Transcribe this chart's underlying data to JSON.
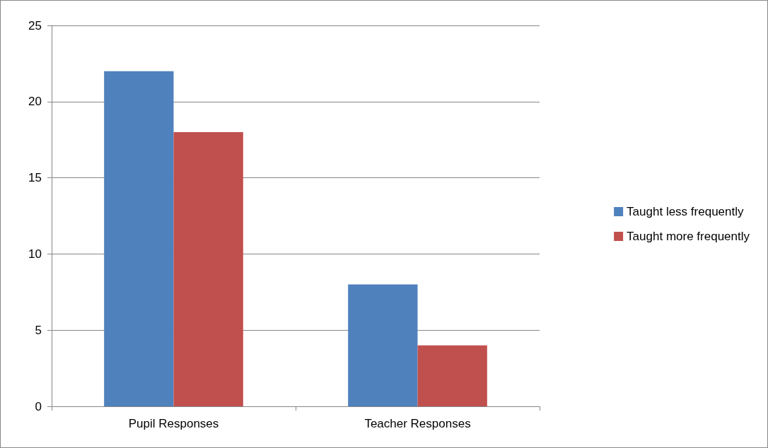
{
  "chart_data": {
    "type": "bar",
    "categories": [
      "Pupil Responses",
      "Teacher Responses"
    ],
    "series": [
      {
        "name": "Taught less frequently",
        "color": "#4f81bd",
        "values": [
          22,
          8
        ]
      },
      {
        "name": "Taught more frequently",
        "color": "#c0504d",
        "values": [
          18,
          4
        ]
      }
    ],
    "ylim": [
      0,
      25
    ],
    "yticks": [
      0,
      5,
      10,
      15,
      20,
      25
    ],
    "grid": "y",
    "legend": "right"
  }
}
